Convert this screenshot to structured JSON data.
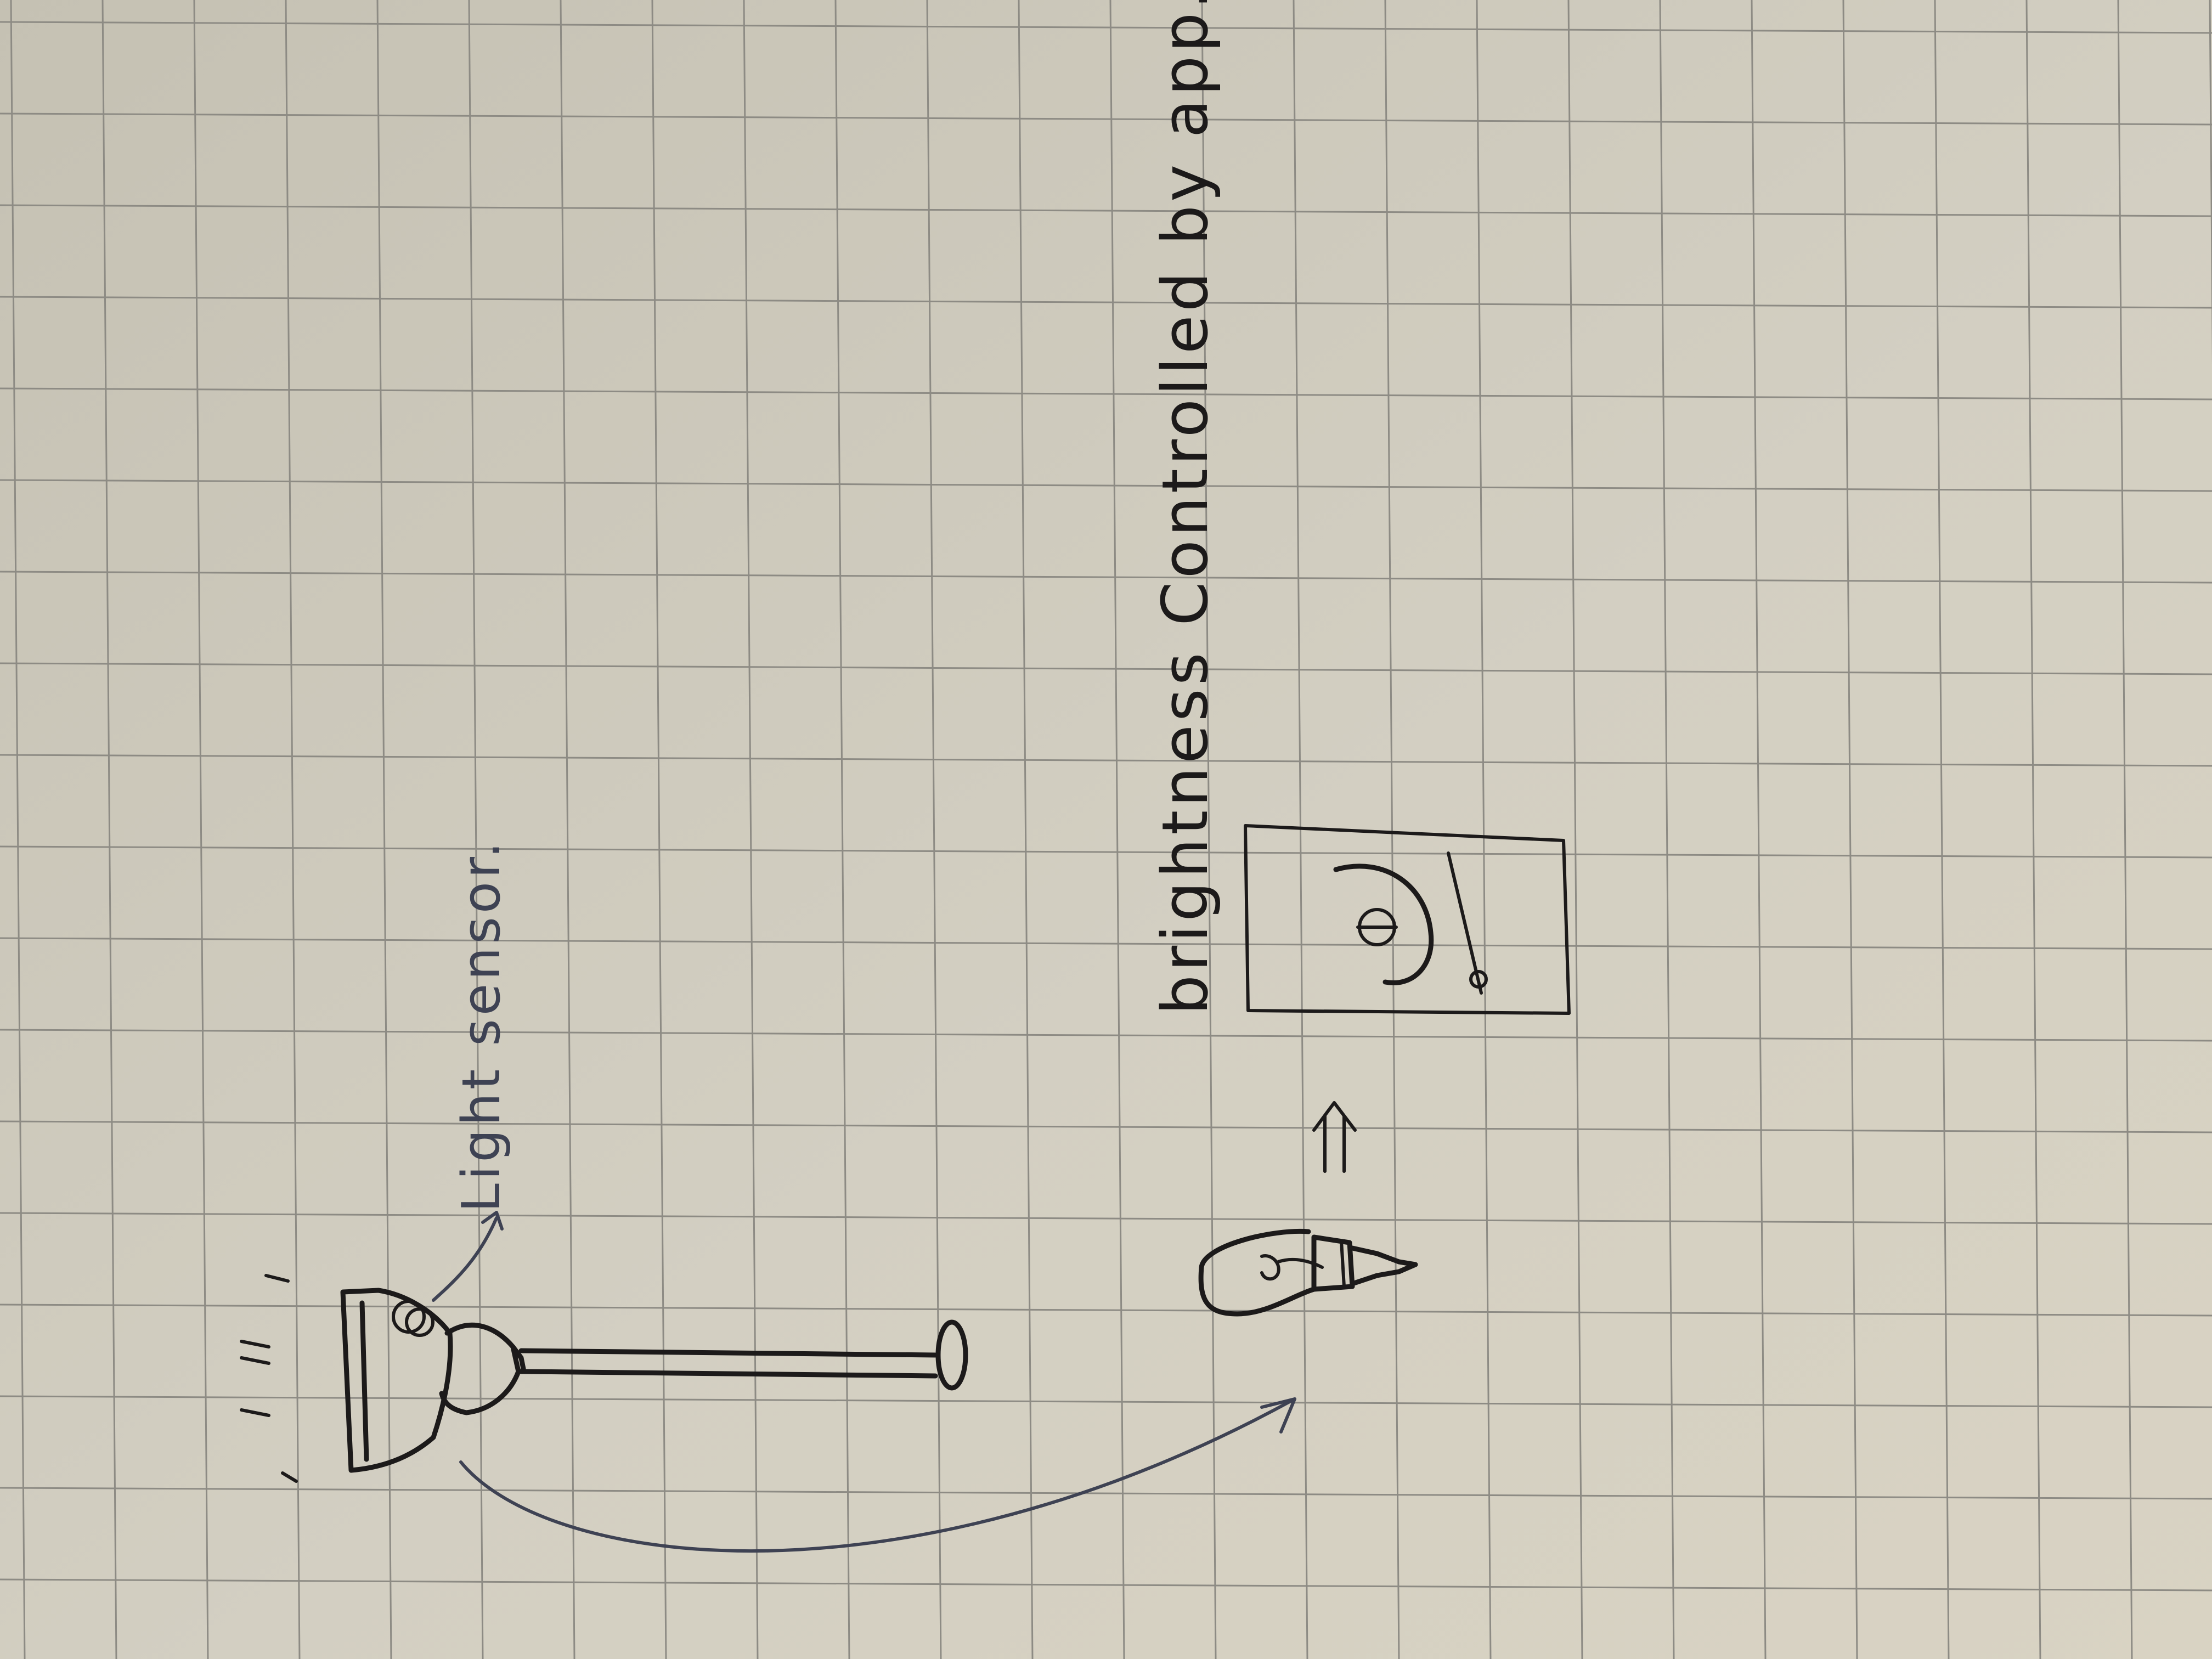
{
  "annotations": {
    "sensor_label": "Light sensor.",
    "app_label": "brightness Controlled by app."
  },
  "colors": {
    "paper": "#cfcbbe",
    "grid": "#8d8b84",
    "ink": "#1c1a1a",
    "pen": "#3e4253"
  },
  "icons": [
    "lamp-icon",
    "light-sensor-icon",
    "light-bulb-icon",
    "phone-app-icon",
    "power-icon",
    "brightness-slider-icon"
  ]
}
